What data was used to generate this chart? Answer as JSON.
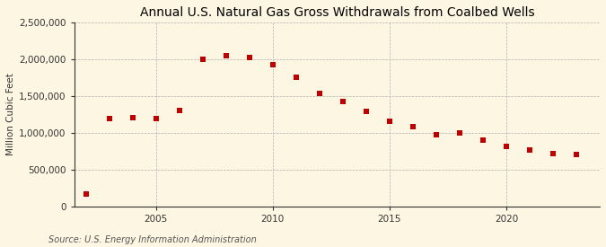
{
  "title": "Annual U.S. Natural Gas Gross Withdrawals from Coalbed Wells",
  "ylabel": "Million Cubic Feet",
  "source": "Source: U.S. Energy Information Administration",
  "years": [
    2002,
    2003,
    2004,
    2005,
    2006,
    2007,
    2008,
    2009,
    2010,
    2011,
    2012,
    2013,
    2014,
    2015,
    2016,
    2017,
    2018,
    2019,
    2020,
    2021,
    2022,
    2023
  ],
  "values": [
    170000,
    1190000,
    1200000,
    1190000,
    1300000,
    2000000,
    2050000,
    2020000,
    1920000,
    1760000,
    1540000,
    1420000,
    1290000,
    1160000,
    1080000,
    970000,
    1000000,
    900000,
    810000,
    760000,
    720000,
    700000
  ],
  "point_color": "#c00000",
  "bg_color": "#fdf6e3",
  "grid_color": "#b0b0b0",
  "spine_color": "#333333",
  "ylim": [
    0,
    2500000
  ],
  "yticks": [
    0,
    500000,
    1000000,
    1500000,
    2000000,
    2500000
  ],
  "xlim": [
    2001.5,
    2024.0
  ],
  "xticks": [
    2005,
    2010,
    2015,
    2020
  ],
  "title_fontsize": 10,
  "label_fontsize": 7.5,
  "tick_fontsize": 7.5,
  "source_fontsize": 7,
  "marker_size": 18
}
